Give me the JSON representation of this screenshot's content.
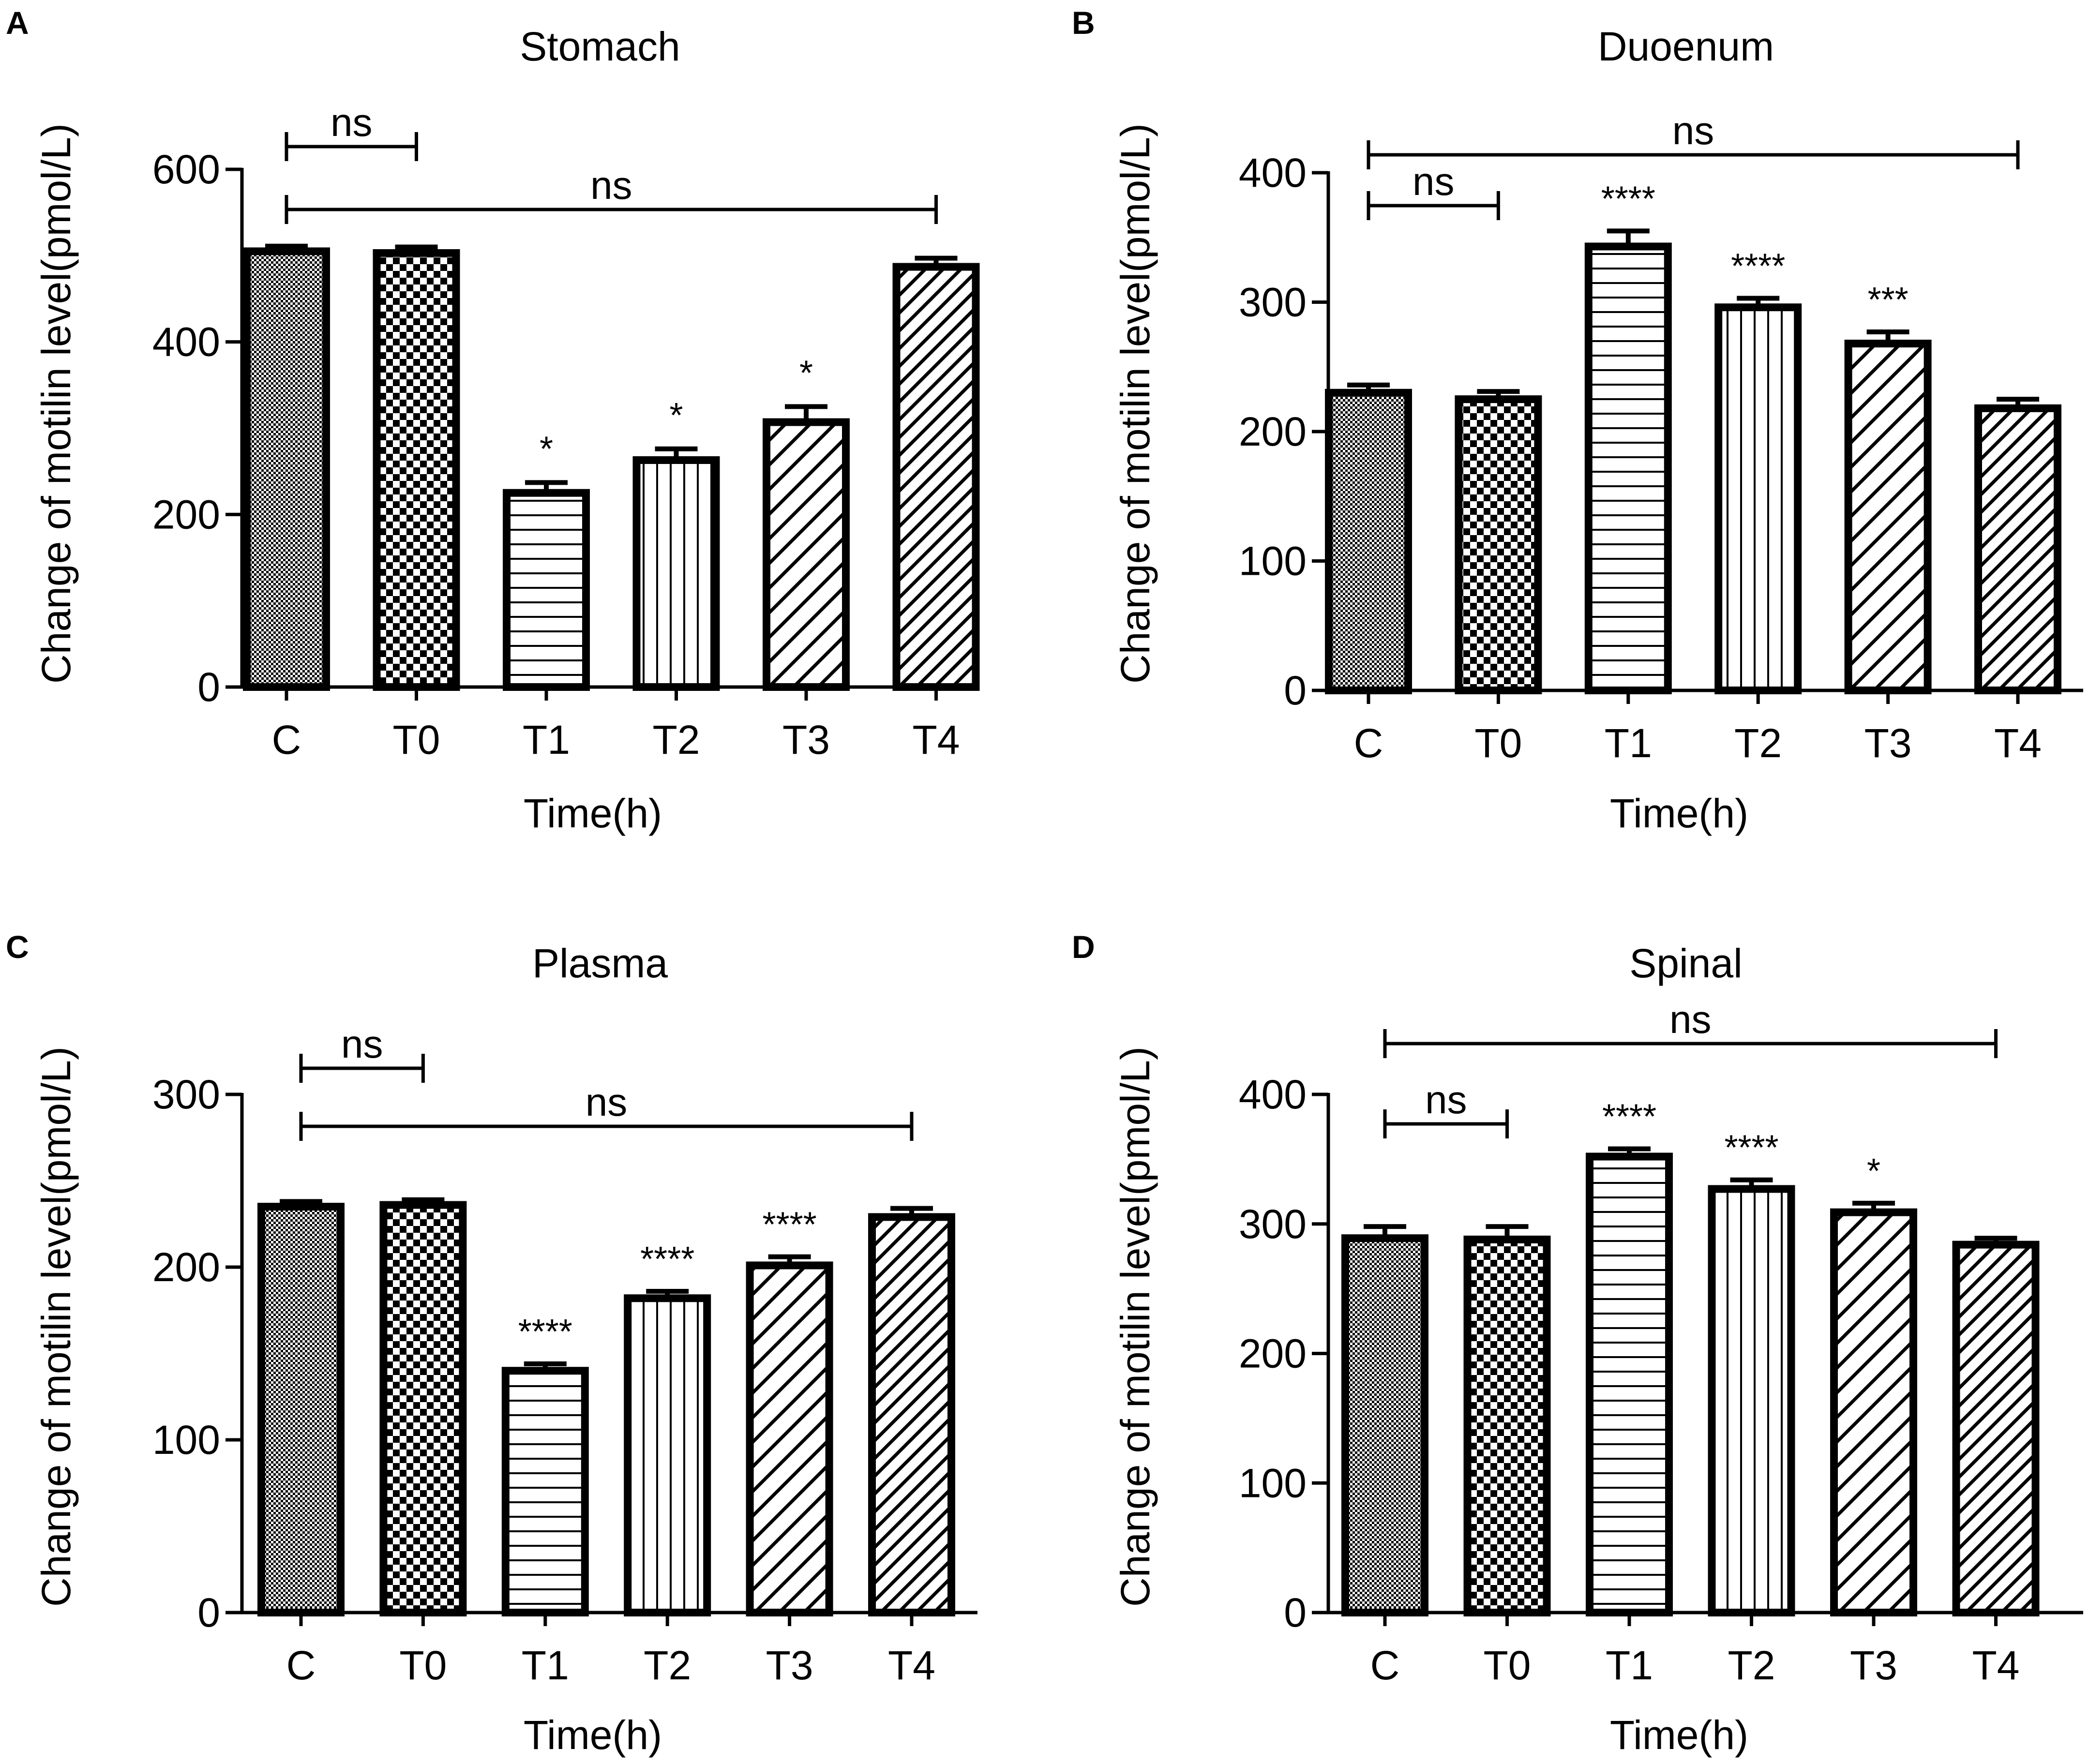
{
  "figure": {
    "panel_count": 4
  },
  "colors": {
    "ink": "#000000",
    "background": "#ffffff"
  },
  "chart_data": [
    {
      "type": "bar",
      "panel": "A",
      "title": "Stomach",
      "xlabel": "Time(h)",
      "ylabel": "Change of motilin level(pmol/L)",
      "categories": [
        "C",
        "T0",
        "T1",
        "T2",
        "T3",
        "T4"
      ],
      "values": [
        505,
        503,
        225,
        263,
        307,
        487
      ],
      "errors": [
        6,
        7,
        12,
        13,
        18,
        10
      ],
      "patterns": [
        "fine-check",
        "checker",
        "horizontal",
        "vertical",
        "diag-wide",
        "diag-dense"
      ],
      "ylim": [
        0,
        600
      ],
      "yticks": [
        0,
        200,
        400,
        600
      ],
      "grid": false,
      "bar_annotations": [
        "",
        "",
        "*",
        "*",
        "*",
        ""
      ],
      "comparisons": [
        {
          "from": 0,
          "to": 1,
          "label": "ns",
          "level": 0
        },
        {
          "from": 0,
          "to": 5,
          "label": "ns",
          "level": 1
        }
      ]
    },
    {
      "type": "bar",
      "panel": "B",
      "title": "Duoenum",
      "xlabel": "Time(h)",
      "ylabel": "Change of motilin level(pmol/L)",
      "categories": [
        "C",
        "T0",
        "T1",
        "T2",
        "T3",
        "T4"
      ],
      "values": [
        230,
        225,
        343,
        296,
        268,
        218
      ],
      "errors": [
        6,
        6,
        12,
        7,
        9,
        7
      ],
      "patterns": [
        "fine-check",
        "checker",
        "horizontal",
        "vertical",
        "diag-wide",
        "diag-dense"
      ],
      "ylim": [
        0,
        400
      ],
      "yticks": [
        0,
        100,
        200,
        300,
        400
      ],
      "grid": false,
      "bar_annotations": [
        "",
        "",
        "****",
        "****",
        "***",
        ""
      ],
      "comparisons": [
        {
          "from": 0,
          "to": 1,
          "label": "ns",
          "level": 1
        },
        {
          "from": 0,
          "to": 5,
          "label": "ns",
          "level": 0
        }
      ]
    },
    {
      "type": "bar",
      "panel": "C",
      "title": "Plasma",
      "xlabel": "Time(h)",
      "ylabel": "Change of motilin level(pmol/L)",
      "categories": [
        "C",
        "T0",
        "T1",
        "T2",
        "T3",
        "T4"
      ],
      "values": [
        235,
        236,
        140,
        182,
        201,
        229
      ],
      "errors": [
        3,
        3,
        4,
        4,
        5,
        5
      ],
      "patterns": [
        "fine-check",
        "checker",
        "horizontal",
        "vertical",
        "diag-wide",
        "diag-dense"
      ],
      "ylim": [
        0,
        300
      ],
      "yticks": [
        0,
        100,
        200,
        300
      ],
      "grid": false,
      "bar_annotations": [
        "",
        "",
        "****",
        "****",
        "****",
        ""
      ],
      "comparisons": [
        {
          "from": 0,
          "to": 1,
          "label": "ns",
          "level": 0
        },
        {
          "from": 0,
          "to": 5,
          "label": "ns",
          "level": 1
        }
      ]
    },
    {
      "type": "bar",
      "panel": "D",
      "title": "Spinal",
      "xlabel": "Time(h)",
      "ylabel": "Change of motilin level(pmol/L)",
      "categories": [
        "C",
        "T0",
        "T1",
        "T2",
        "T3",
        "T4"
      ],
      "values": [
        289,
        288,
        352,
        327,
        309,
        284
      ],
      "errors": [
        9,
        10,
        6,
        7,
        7,
        5
      ],
      "patterns": [
        "fine-check",
        "checker",
        "horizontal",
        "vertical",
        "diag-wide",
        "diag-dense"
      ],
      "ylim": [
        0,
        400
      ],
      "yticks": [
        0,
        100,
        200,
        300,
        400
      ],
      "grid": false,
      "bar_annotations": [
        "",
        "",
        "****",
        "****",
        "*",
        ""
      ],
      "comparisons": [
        {
          "from": 0,
          "to": 1,
          "label": "ns",
          "level": 1
        },
        {
          "from": 0,
          "to": 5,
          "label": "ns",
          "level": 0
        }
      ]
    }
  ]
}
